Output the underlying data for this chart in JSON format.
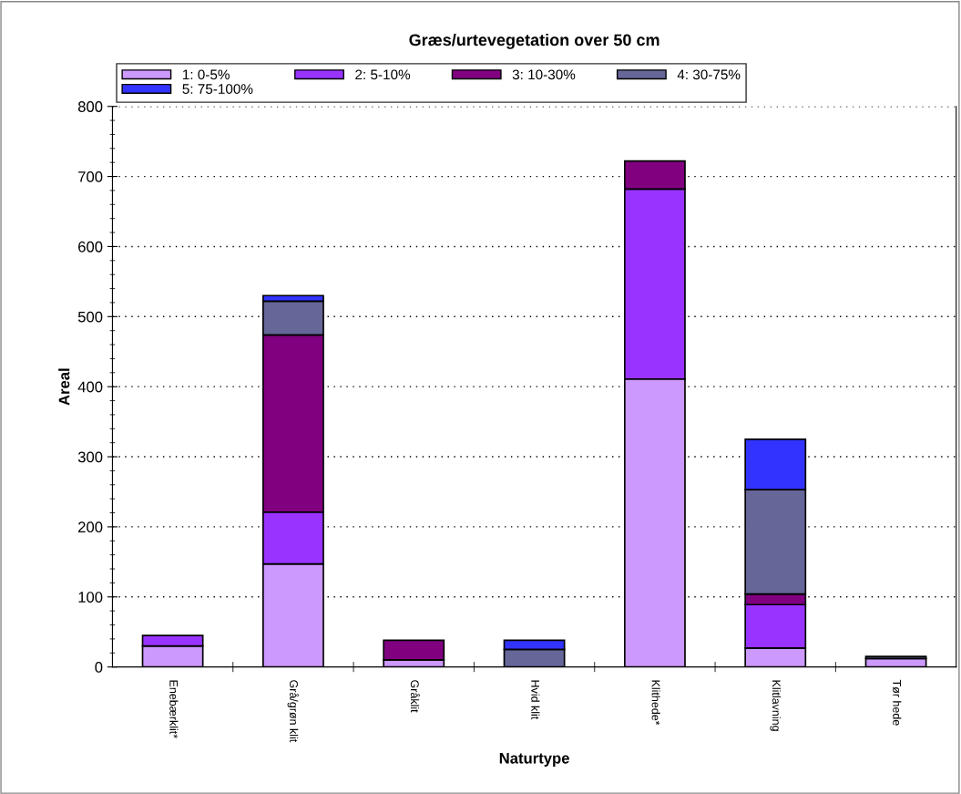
{
  "chart_data": {
    "type": "bar",
    "title": "Græs/urtevegetation over 50 cm",
    "xlabel": "Naturtype",
    "ylabel": "Areal",
    "categories": [
      "Enebærklit*",
      "Grå/grøn klit",
      "Gråklit",
      "Hvid klit",
      "Klithede*",
      "Klitlavning",
      "Tør hede"
    ],
    "stacked": true,
    "series": [
      {
        "name": "1: 0-5%",
        "color": "#cc99ff",
        "values": [
          30,
          147,
          10,
          0,
          411,
          27,
          12
        ]
      },
      {
        "name": "2: 5-10%",
        "color": "#9933ff",
        "values": [
          15,
          74,
          0,
          0,
          271,
          62,
          0
        ]
      },
      {
        "name": "3: 10-30%",
        "color": "#800080",
        "values": [
          0,
          253,
          28,
          0,
          40,
          15,
          0
        ]
      },
      {
        "name": "4: 30-75%",
        "color": "#666699",
        "values": [
          0,
          48,
          0,
          25,
          0,
          149,
          3
        ]
      },
      {
        "name": "5: 75-100%",
        "color": "#3333ff",
        "values": [
          0,
          8,
          0,
          13,
          0,
          72,
          0
        ]
      }
    ],
    "ylim": [
      0,
      800
    ],
    "yticks": [
      0,
      100,
      200,
      300,
      400,
      500,
      600,
      700,
      800
    ],
    "grid": "y",
    "legend": "top"
  }
}
